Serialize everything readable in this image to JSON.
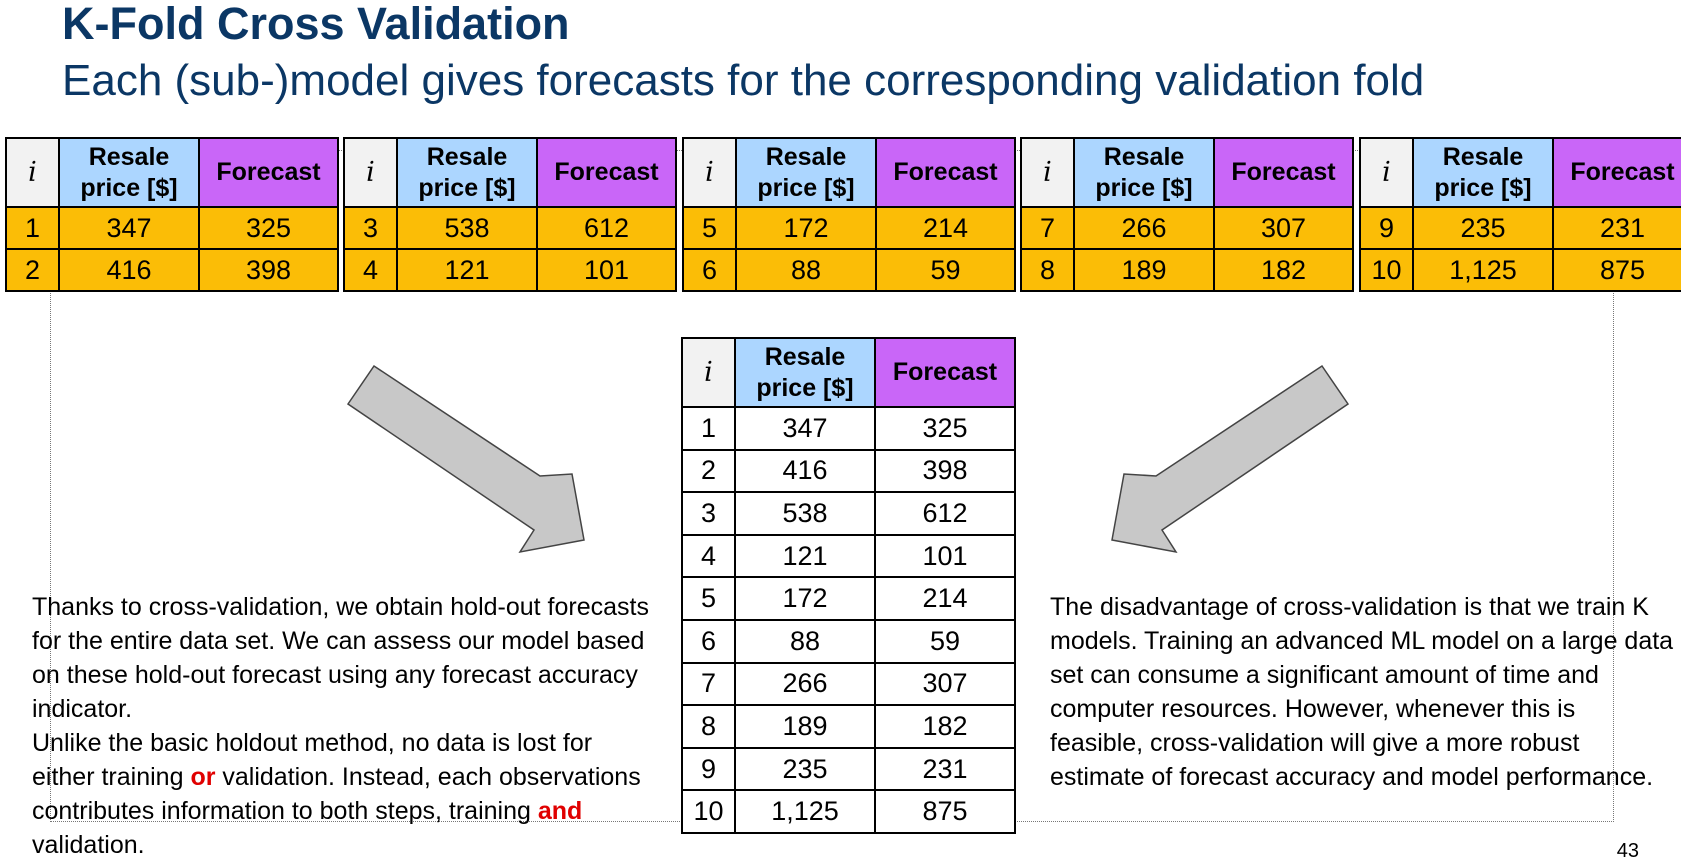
{
  "slide": {
    "title": "K-Fold Cross Validation",
    "subtitle": "Each (sub-)model gives forecasts for the corresponding validation fold",
    "page_number": "43"
  },
  "table_headers": {
    "index": "i",
    "resale_price": "Resale price [$]",
    "forecast": "Forecast"
  },
  "folds": [
    {
      "rows": [
        {
          "i": "1",
          "price": "347",
          "forecast": "325"
        },
        {
          "i": "2",
          "price": "416",
          "forecast": "398"
        }
      ]
    },
    {
      "rows": [
        {
          "i": "3",
          "price": "538",
          "forecast": "612"
        },
        {
          "i": "4",
          "price": "121",
          "forecast": "101"
        }
      ]
    },
    {
      "rows": [
        {
          "i": "5",
          "price": "172",
          "forecast": "214"
        },
        {
          "i": "6",
          "price": "88",
          "forecast": "59"
        }
      ]
    },
    {
      "rows": [
        {
          "i": "7",
          "price": "266",
          "forecast": "307"
        },
        {
          "i": "8",
          "price": "189",
          "forecast": "182"
        }
      ]
    },
    {
      "rows": [
        {
          "i": "9",
          "price": "235",
          "forecast": "231"
        },
        {
          "i": "10",
          "price": "1,125",
          "forecast": "875"
        }
      ]
    }
  ],
  "combined": {
    "rows": [
      {
        "i": "1",
        "price": "347",
        "forecast": "325"
      },
      {
        "i": "2",
        "price": "416",
        "forecast": "398"
      },
      {
        "i": "3",
        "price": "538",
        "forecast": "612"
      },
      {
        "i": "4",
        "price": "121",
        "forecast": "101"
      },
      {
        "i": "5",
        "price": "172",
        "forecast": "214"
      },
      {
        "i": "6",
        "price": "88",
        "forecast": "59"
      },
      {
        "i": "7",
        "price": "266",
        "forecast": "307"
      },
      {
        "i": "8",
        "price": "189",
        "forecast": "182"
      },
      {
        "i": "9",
        "price": "235",
        "forecast": "231"
      },
      {
        "i": "10",
        "price": "1,125",
        "forecast": "875"
      }
    ]
  },
  "left_text": {
    "line1": "Thanks to cross-validation, we obtain hold-out forecasts for the entire data set. We can assess our model based on these hold-out forecast using any forecast accuracy indicator.",
    "line2_a": "Unlike the basic holdout method, no data is lost for either training ",
    "line2_or": "or",
    "line2_b": " validation. Instead, each observations contributes  information to both steps, training ",
    "line2_and": "and",
    "line2_c": " validation."
  },
  "right_text": {
    "body": "The disadvantage of cross-validation is that we train K models. Training an advanced ML model on a large data set can consume a significant amount of time and computer resources. However, whenever this is feasible, cross-validation will give a more robust estimate of forecast accuracy and model performance."
  },
  "colors": {
    "title": "#0b3765",
    "index_header": "#f2f2f2",
    "price_header": "#acd6ff",
    "forecast_header": "#c966f8",
    "fold_cells": "#fbbd06",
    "highlight": "#e00000",
    "arrow_fill": "#c8c8c8"
  }
}
